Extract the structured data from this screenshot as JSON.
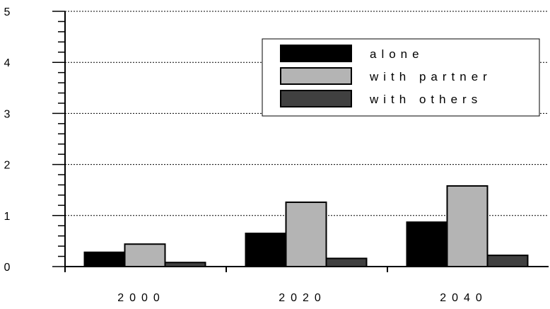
{
  "chart_data": {
    "type": "bar",
    "title": "",
    "xlabel": "",
    "ylabel": "",
    "categories": [
      "2000",
      "2020",
      "2040"
    ],
    "series": [
      {
        "name": "alone",
        "values": [
          0.28,
          0.65,
          0.87
        ],
        "color": "#000000"
      },
      {
        "name": "with partner",
        "values": [
          0.44,
          1.26,
          1.58
        ],
        "color": "#b4b4b4"
      },
      {
        "name": "with others",
        "values": [
          0.08,
          0.16,
          0.22
        ],
        "color": "#404040"
      }
    ],
    "ylim": [
      0,
      5
    ],
    "yticks": [
      "0",
      "1",
      "2",
      "3",
      "4",
      "5"
    ],
    "grid": "horizontal dashed",
    "legend_position": "top-right"
  }
}
